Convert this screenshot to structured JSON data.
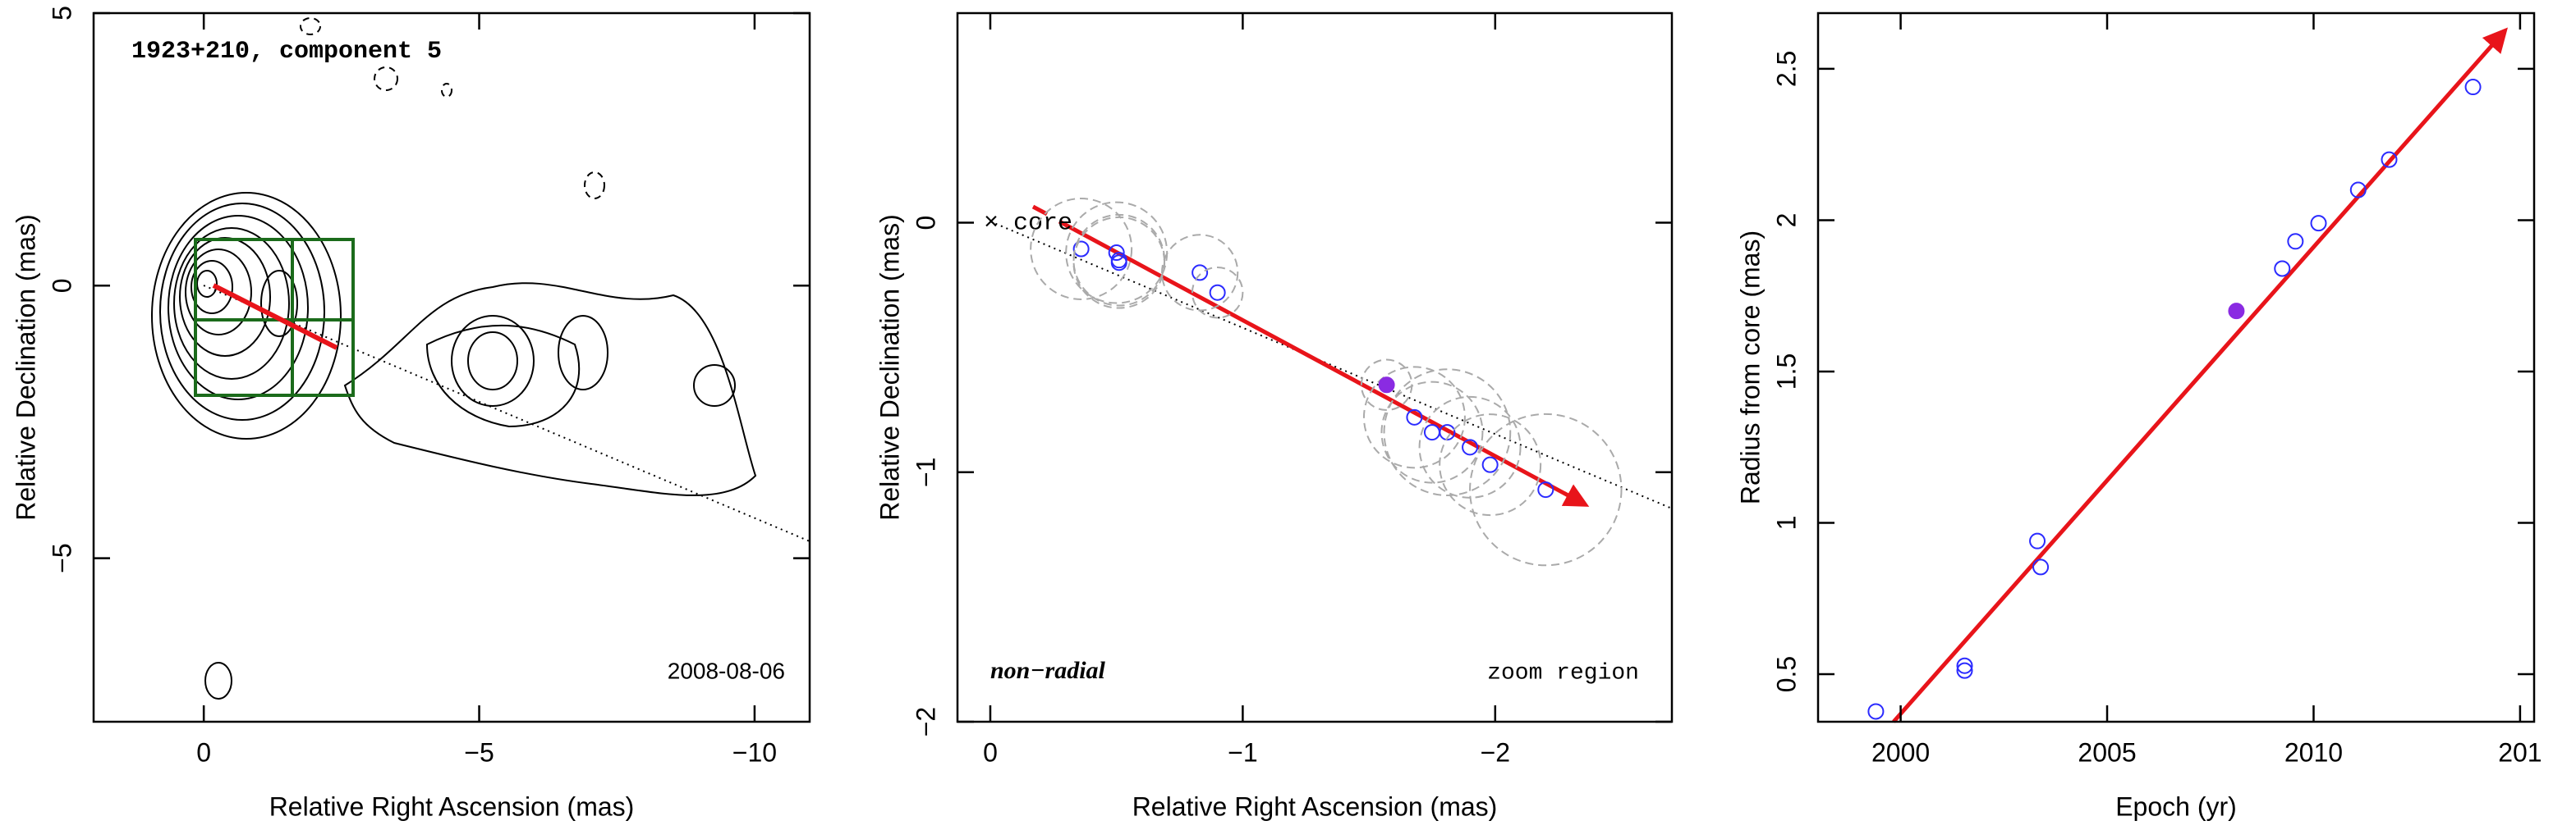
{
  "chart_data": [
    {
      "type": "contour",
      "title": "1923+210, component 5",
      "date": "2008-08-06",
      "x_label": "Relative Right Ascension (mas)",
      "y_label": "Relative Declination (mas)",
      "xlim": [
        2,
        -11
      ],
      "ylim": [
        -8,
        5
      ],
      "xticks": [
        0,
        {
          "value": -5,
          "label": "−5"
        },
        {
          "value": -10,
          "label": "−10"
        }
      ],
      "yticks": [
        {
          "value": -5,
          "label": "−5"
        },
        0,
        5
      ]
    },
    {
      "type": "scatter",
      "x_label": "Relative Right Ascension (mas)",
      "y_label": "Relative Declination (mas)",
      "core_label": "× core",
      "left_note": "non−radial",
      "right_note": "zoom region",
      "xlim": [
        0.13,
        -2.7
      ],
      "ylim": [
        -2,
        0.84
      ],
      "xticks": [
        0,
        {
          "value": -1,
          "label": "−1"
        },
        {
          "value": -2,
          "label": "−2"
        }
      ],
      "yticks": [
        {
          "value": -2,
          "label": "−2"
        },
        {
          "value": -1,
          "label": "−1"
        },
        0
      ],
      "series": [
        {
          "color": "#2b2bff",
          "marker": "open",
          "x": [
            -0.36,
            -0.5,
            -0.51,
            -0.51,
            -0.83,
            -0.9,
            -1.68,
            -1.75,
            -1.81,
            -1.9,
            -1.98,
            -2.2
          ],
          "values": [
            -0.105,
            -0.12,
            -0.15,
            -0.16,
            -0.2,
            -0.28,
            -0.78,
            -0.84,
            -0.84,
            -0.9,
            -0.97,
            -1.07
          ],
          "radius": [
            0.2,
            0.2,
            0.18,
            0.18,
            0.15,
            0.1,
            0.2,
            0.2,
            0.25,
            0.2,
            0.2,
            0.3
          ]
        },
        {
          "color": "#8a2be2",
          "marker": "filled",
          "x": [
            -1.57
          ],
          "values": [
            -0.65
          ],
          "radius": [
            0.1
          ]
        }
      ]
    },
    {
      "type": "scatter",
      "x_label": "Epoch (yr)",
      "y_label": "Radius from core (mas)",
      "xlim": [
        1998,
        2015.34
      ],
      "ylim": [
        0.343,
        2.684
      ],
      "xticks": [
        2000,
        2005,
        2010,
        {
          "value": 2015,
          "label": "201"
        }
      ],
      "yticks": [
        0.5,
        1,
        1.5,
        2,
        2.5
      ],
      "series": [
        {
          "color": "#2b2bff",
          "marker": "open",
          "x": [
            1999.4,
            2001.55,
            2001.55,
            2003.31,
            2003.39,
            2009.24,
            2009.56,
            2010.12,
            2011.08,
            2011.83,
            2013.86
          ],
          "values": [
            0.377,
            0.528,
            0.512,
            0.94,
            0.854,
            1.84,
            1.93,
            1.99,
            2.1,
            2.2,
            2.44
          ]
        },
        {
          "color": "#8a2be2",
          "marker": "filled",
          "x": [
            2008.13
          ],
          "values": [
            1.7
          ]
        }
      ]
    }
  ]
}
